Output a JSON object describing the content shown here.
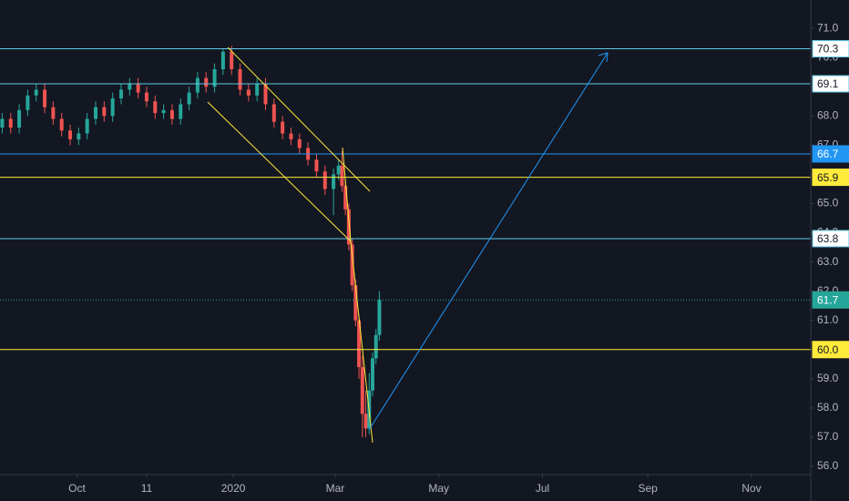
{
  "chart_data": {
    "type": "candlestick",
    "up_color": "#26a69a",
    "down_color": "#ef5350",
    "x": [
      -136,
      -131,
      -126,
      -121,
      -116,
      -111,
      -106,
      -101,
      -96,
      -91,
      -86,
      -81,
      -76,
      -71,
      -66,
      -61,
      -56,
      -51,
      -46,
      -41,
      -36,
      -31,
      -26,
      -21,
      -16,
      -11,
      -6,
      -1,
      4,
      9,
      14,
      19,
      24,
      29,
      34,
      39,
      44,
      49,
      54,
      59,
      62,
      64,
      66,
      68,
      70,
      72,
      74,
      76,
      78,
      80,
      82,
      84,
      86
    ],
    "open": [
      67.6,
      67.9,
      67.6,
      68.2,
      68.7,
      68.9,
      68.3,
      67.9,
      67.5,
      67.2,
      67.4,
      67.9,
      68.3,
      68.0,
      68.6,
      68.9,
      69.1,
      68.8,
      68.5,
      68.1,
      68.2,
      67.9,
      68.4,
      68.8,
      69.3,
      69.0,
      69.6,
      70.2,
      69.6,
      68.9,
      68.7,
      69.1,
      68.4,
      67.8,
      67.4,
      67.2,
      66.9,
      66.5,
      66.1,
      65.5,
      66.0,
      66.3,
      65.6,
      64.8,
      63.6,
      62.2,
      61.0,
      59.4,
      57.8,
      57.3,
      58.6,
      59.7,
      60.5
    ],
    "high": [
      68.1,
      68.1,
      68.4,
      68.9,
      69.1,
      69.1,
      68.5,
      68.1,
      67.7,
      67.6,
      68.1,
      68.5,
      68.5,
      68.8,
      69.1,
      69.3,
      69.3,
      69.0,
      68.7,
      68.4,
      68.4,
      68.6,
      69.0,
      69.5,
      69.5,
      69.8,
      70.3,
      70.4,
      69.8,
      69.1,
      69.3,
      69.3,
      68.6,
      68.0,
      67.6,
      67.4,
      67.1,
      66.7,
      66.3,
      66.2,
      66.5,
      66.8,
      65.8,
      65.0,
      63.8,
      62.4,
      61.2,
      59.8,
      58.6,
      59.2,
      59.9,
      60.7,
      62.0
    ],
    "low": [
      67.4,
      67.4,
      67.4,
      68.0,
      68.5,
      68.1,
      67.7,
      67.3,
      67.0,
      67.0,
      67.2,
      67.7,
      67.8,
      67.8,
      68.4,
      68.7,
      68.6,
      68.3,
      67.9,
      67.9,
      67.7,
      67.7,
      68.2,
      68.6,
      68.8,
      68.8,
      69.4,
      69.4,
      68.7,
      68.5,
      68.5,
      68.2,
      67.6,
      67.2,
      67.0,
      66.7,
      66.3,
      65.9,
      65.3,
      64.6,
      65.8,
      65.4,
      64.6,
      63.4,
      62.0,
      60.8,
      59.0,
      57.0,
      57.0,
      57.1,
      58.4,
      59.5,
      60.3
    ],
    "close": [
      67.9,
      67.6,
      68.2,
      68.7,
      68.9,
      68.3,
      67.9,
      67.5,
      67.2,
      67.4,
      67.9,
      68.3,
      68.0,
      68.6,
      68.9,
      69.1,
      68.8,
      68.5,
      68.1,
      68.2,
      67.9,
      68.4,
      68.8,
      69.3,
      69.0,
      69.6,
      70.2,
      69.6,
      68.9,
      68.7,
      69.1,
      68.4,
      67.8,
      67.4,
      67.2,
      66.9,
      66.5,
      66.1,
      65.5,
      66.0,
      66.3,
      65.6,
      64.8,
      63.6,
      62.2,
      61.0,
      59.4,
      57.8,
      57.3,
      58.6,
      59.7,
      60.5,
      61.7
    ],
    "xlim": [
      -137.3,
      339.9
    ],
    "xticks": [
      {
        "value": -92,
        "label": "Oct"
      },
      {
        "value": -51,
        "label": "11"
      },
      {
        "value": 0,
        "label": "2020"
      },
      {
        "value": 60,
        "label": "Mar"
      },
      {
        "value": 121,
        "label": "May"
      },
      {
        "value": 182,
        "label": "Jul"
      },
      {
        "value": 244,
        "label": "Sep"
      },
      {
        "value": 305,
        "label": "Nov"
      }
    ],
    "ylim": [
      55.72,
      71.97
    ],
    "yticks": [
      {
        "value": 56,
        "label": "56.0"
      },
      {
        "value": 57,
        "label": "57.0"
      },
      {
        "value": 58,
        "label": "58.0"
      },
      {
        "value": 59,
        "label": "59.0"
      },
      {
        "value": 60,
        "label": "60.0"
      },
      {
        "value": 61,
        "label": "61.0"
      },
      {
        "value": 62,
        "label": "62.0"
      },
      {
        "value": 63,
        "label": "63.0"
      },
      {
        "value": 64,
        "label": "64.0"
      },
      {
        "value": 65,
        "label": "65.0"
      },
      {
        "value": 66,
        "label": "66.0"
      },
      {
        "value": 67,
        "label": "67.0"
      },
      {
        "value": 68,
        "label": "68.0"
      },
      {
        "value": 69,
        "label": "69.0"
      },
      {
        "value": 70,
        "label": "70.0"
      },
      {
        "value": 71,
        "label": "71.0"
      }
    ],
    "grid": false,
    "levels": [
      {
        "value": 70.3,
        "color": "#5ec8e6",
        "label_bg": "#ffffff",
        "label_color": "#131722"
      },
      {
        "value": 69.1,
        "color": "#5ec8e6",
        "label_bg": "#ffffff",
        "label_color": "#131722"
      },
      {
        "value": 66.7,
        "color": "#2196f3",
        "label_bg": "#2196f3",
        "label_color": "#ffffff"
      },
      {
        "value": 65.9,
        "color": "#ffeb3b",
        "label_bg": "#ffeb3b",
        "label_color": "#131722"
      },
      {
        "value": 63.8,
        "color": "#5ec8e6",
        "label_bg": "#ffffff",
        "label_color": "#131722"
      },
      {
        "value": 61.7,
        "color": "#26a69a",
        "label_bg": "#26a69a",
        "label_color": "#ffffff",
        "dotted": true
      },
      {
        "value": 60,
        "label": "60.0",
        "color": "#ffeb3b",
        "label_bg": "#ffeb3b",
        "label_color": "#131722"
      }
    ]
  }
}
